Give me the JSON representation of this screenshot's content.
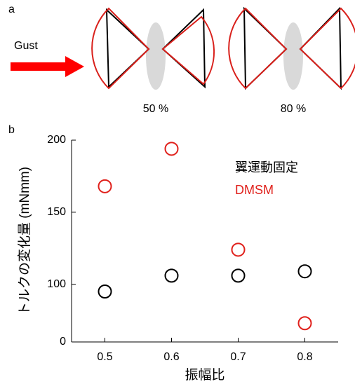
{
  "panel_a": {
    "label": "a",
    "arrow_label": "Gust",
    "captions": [
      "50 %",
      "80 %"
    ]
  },
  "chart_data": {
    "type": "scatter",
    "panel_label": "b",
    "x_label": "振幅比",
    "y_label": "トルクの変化量 (mNmm)",
    "x": [
      0.5,
      0.6,
      0.7,
      0.8
    ],
    "series": [
      {
        "name": "翼運動固定",
        "color": "#000000",
        "values": [
          95,
          106,
          106,
          109
        ]
      },
      {
        "name": "DMSM",
        "color": "#e0201b",
        "values": [
          168,
          194,
          124,
          73
        ]
      }
    ],
    "xlim": [
      0.45,
      0.85
    ],
    "xticks": [
      0.5,
      0.6,
      0.7,
      0.8
    ],
    "ylim": [
      60,
      200
    ],
    "yticks": [
      {
        "value": 60,
        "label": "0"
      },
      100,
      150,
      200
    ]
  }
}
